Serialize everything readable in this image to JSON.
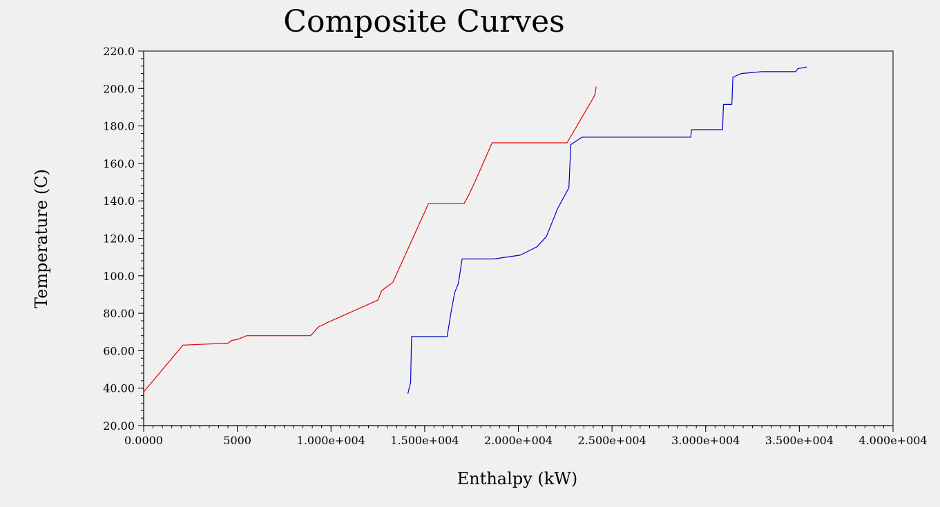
{
  "chart_data": {
    "type": "line",
    "title": "Composite Curves",
    "xlabel": "Enthalpy (kW)",
    "ylabel": "Temperature (C)",
    "xlim": [
      0,
      40000
    ],
    "ylim": [
      20,
      220
    ],
    "x_ticks": [
      {
        "value": 0,
        "label": "0.0000"
      },
      {
        "value": 5000,
        "label": "5000"
      },
      {
        "value": 10000,
        "label": "1.000e+004"
      },
      {
        "value": 15000,
        "label": "1.500e+004"
      },
      {
        "value": 20000,
        "label": "2.000e+004"
      },
      {
        "value": 25000,
        "label": "2.500e+004"
      },
      {
        "value": 30000,
        "label": "3.000e+004"
      },
      {
        "value": 35000,
        "label": "3.500e+004"
      },
      {
        "value": 40000,
        "label": "4.000e+004"
      }
    ],
    "y_ticks": [
      {
        "value": 20,
        "label": "20.00"
      },
      {
        "value": 40,
        "label": "40.00"
      },
      {
        "value": 60,
        "label": "60.00"
      },
      {
        "value": 80,
        "label": "80.00"
      },
      {
        "value": 100,
        "label": "100.0"
      },
      {
        "value": 120,
        "label": "120.0"
      },
      {
        "value": 140,
        "label": "140.0"
      },
      {
        "value": 160,
        "label": "160.0"
      },
      {
        "value": 180,
        "label": "180.0"
      },
      {
        "value": 200,
        "label": "200.0"
      },
      {
        "value": 220,
        "label": "220.0"
      }
    ],
    "grid": false,
    "legend": "none",
    "series": [
      {
        "color": "#e00000",
        "points": [
          [
            0,
            38
          ],
          [
            2100,
            63
          ],
          [
            4500,
            64
          ],
          [
            4700,
            65.5
          ],
          [
            5000,
            66
          ],
          [
            5500,
            68
          ],
          [
            8900,
            68
          ],
          [
            9100,
            70
          ],
          [
            9300,
            72.5
          ],
          [
            9800,
            75
          ],
          [
            12500,
            87
          ],
          [
            12700,
            92
          ],
          [
            12900,
            93.5
          ],
          [
            13300,
            96.5
          ],
          [
            14000,
            112
          ],
          [
            15200,
            138.5
          ],
          [
            17100,
            138.5
          ],
          [
            17400,
            144
          ],
          [
            17900,
            155
          ],
          [
            18600,
            171
          ],
          [
            22600,
            171
          ],
          [
            24000,
            195
          ],
          [
            24100,
            197
          ],
          [
            24150,
            201
          ]
        ]
      },
      {
        "color": "#0000cc",
        "points": [
          [
            14100,
            37
          ],
          [
            14250,
            43
          ],
          [
            14300,
            67.5
          ],
          [
            16200,
            67.5
          ],
          [
            16400,
            80
          ],
          [
            16600,
            91
          ],
          [
            16800,
            96
          ],
          [
            17000,
            109
          ],
          [
            18700,
            109
          ],
          [
            20100,
            111
          ],
          [
            21000,
            115.5
          ],
          [
            21500,
            121
          ],
          [
            21700,
            126
          ],
          [
            22100,
            136
          ],
          [
            22700,
            147
          ],
          [
            22800,
            170
          ],
          [
            23400,
            174
          ],
          [
            29200,
            174
          ],
          [
            29250,
            178
          ],
          [
            30900,
            178
          ],
          [
            30950,
            191.5
          ],
          [
            31400,
            191.5
          ],
          [
            31450,
            206
          ],
          [
            31900,
            208
          ],
          [
            33000,
            209
          ],
          [
            34800,
            209
          ],
          [
            34900,
            210.5
          ],
          [
            35400,
            211.5
          ]
        ]
      }
    ]
  }
}
